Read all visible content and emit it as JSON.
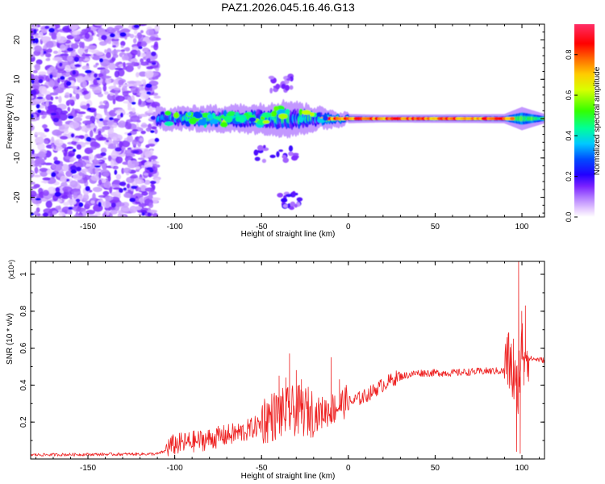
{
  "title": "PAZ1.2026.045.16.46.G13",
  "chart_data": [
    {
      "type": "heatmap",
      "name": "spectrogram",
      "xlabel": "Height of straight line (km)",
      "ylabel": "Frequency (Hz)",
      "xlim": [
        -183,
        113
      ],
      "ylim": [
        -25,
        24
      ],
      "xticks": [
        -150,
        -100,
        -50,
        0,
        50,
        100
      ],
      "yticks": [
        20,
        10,
        0,
        -10,
        -20
      ],
      "colorbar": {
        "label": "Normalized spectral amplitude",
        "range": [
          0,
          0.95
        ],
        "ticks": [
          0.0,
          0.2,
          0.4,
          0.6,
          0.8
        ]
      },
      "features": {
        "noise_region_x": [
          -183,
          -110
        ],
        "center_frequency": 0,
        "band_half_width": [
          [
            -110,
            2.5
          ],
          [
            -80,
            3
          ],
          [
            -50,
            3.5
          ],
          [
            -35,
            4.5
          ],
          [
            -20,
            3
          ],
          [
            0,
            1.2
          ],
          [
            20,
            1
          ],
          [
            90,
            1.2
          ],
          [
            100,
            3
          ],
          [
            113,
            1.2
          ]
        ],
        "high_amplitude_x": [
          -15,
          95
        ],
        "secondary_features": [
          {
            "x_range": [
              -45,
              -32
            ],
            "frequency_hz": 9
          },
          {
            "x_range": [
              -55,
              -30
            ],
            "frequency_hz": -9
          },
          {
            "x_range": [
              -40,
              -28
            ],
            "frequency_hz": -21
          }
        ]
      }
    },
    {
      "type": "line",
      "name": "snr",
      "xlabel": "Height of straight line (km)",
      "ylabel": "SNR (10 * v/v)",
      "y_multiplier": "(x10⁴)",
      "xlim": [
        -183,
        113
      ],
      "ylim": [
        0,
        1.07
      ],
      "xticks": [
        -150,
        -100,
        -50,
        0,
        50,
        100
      ],
      "yticks": [
        0.2,
        0.4,
        0.6,
        0.8,
        1
      ],
      "color": "#ee2222",
      "series": [
        {
          "name": "SNR",
          "envelope": [
            [
              -183,
              0.02
            ],
            [
              -110,
              0.025
            ],
            [
              -100,
              0.06
            ],
            [
              -80,
              0.09
            ],
            [
              -60,
              0.13
            ],
            [
              -50,
              0.17
            ],
            [
              -40,
              0.2
            ],
            [
              -30,
              0.22
            ],
            [
              -20,
              0.21
            ],
            [
              -10,
              0.24
            ],
            [
              0,
              0.29
            ],
            [
              10,
              0.33
            ],
            [
              20,
              0.39
            ],
            [
              30,
              0.44
            ],
            [
              40,
              0.46
            ],
            [
              60,
              0.46
            ],
            [
              80,
              0.47
            ],
            [
              93,
              0.47
            ],
            [
              97,
              0.3
            ],
            [
              100,
              0.55
            ],
            [
              104,
              0.54
            ],
            [
              113,
              0.53
            ]
          ],
          "spikes": [
            [
              -40,
              0.45
            ],
            [
              -36,
              0.44
            ],
            [
              -34,
              0.57
            ],
            [
              -30,
              0.48
            ],
            [
              -27,
              0.43
            ],
            [
              -10,
              0.55
            ],
            [
              -5,
              0.43
            ],
            [
              95,
              0.65
            ],
            [
              97,
              0.04
            ],
            [
              98,
              1.07
            ],
            [
              99,
              0.03
            ],
            [
              100,
              0.8
            ],
            [
              101,
              0.4
            ],
            [
              102,
              0.83
            ]
          ]
        }
      ]
    }
  ]
}
